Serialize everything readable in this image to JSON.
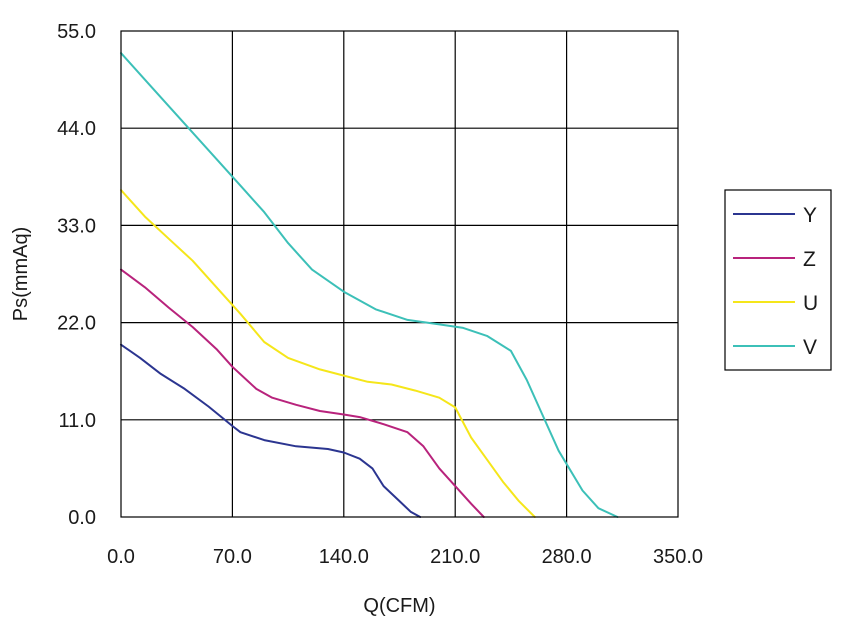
{
  "chart_data": {
    "type": "line",
    "xlabel": "Q(CFM)",
    "ylabel": "Ps(mmAq)",
    "xlim": [
      0,
      350
    ],
    "ylim": [
      0,
      55
    ],
    "x_ticks": [
      "0.0",
      "70.0",
      "140.0",
      "210.0",
      "280.0",
      "350.0"
    ],
    "y_ticks": [
      "0.0",
      "11.0",
      "22.0",
      "33.0",
      "44.0",
      "55.0"
    ],
    "grid": true,
    "legend_position": "right",
    "series": [
      {
        "name": "Y",
        "color": "#2b3590",
        "points": [
          [
            0,
            19.5
          ],
          [
            12,
            18
          ],
          [
            25,
            16.2
          ],
          [
            40,
            14.5
          ],
          [
            55,
            12.5
          ],
          [
            70,
            10.3
          ],
          [
            75,
            9.6
          ],
          [
            90,
            8.7
          ],
          [
            110,
            8.0
          ],
          [
            130,
            7.7
          ],
          [
            140,
            7.3
          ],
          [
            150,
            6.6
          ],
          [
            158,
            5.5
          ],
          [
            165,
            3.5
          ],
          [
            175,
            1.8
          ],
          [
            182,
            0.6
          ],
          [
            188,
            0
          ]
        ]
      },
      {
        "name": "Z",
        "color": "#b8237c",
        "points": [
          [
            0,
            28
          ],
          [
            15,
            26
          ],
          [
            30,
            23.7
          ],
          [
            45,
            21.5
          ],
          [
            60,
            19
          ],
          [
            70,
            17
          ],
          [
            85,
            14.5
          ],
          [
            95,
            13.5
          ],
          [
            110,
            12.7
          ],
          [
            125,
            12.0
          ],
          [
            140,
            11.6
          ],
          [
            150,
            11.3
          ],
          [
            165,
            10.5
          ],
          [
            180,
            9.6
          ],
          [
            190,
            8.0
          ],
          [
            200,
            5.5
          ],
          [
            210,
            3.5
          ],
          [
            220,
            1.5
          ],
          [
            228,
            0
          ]
        ]
      },
      {
        "name": "U",
        "color": "#f5e61a",
        "points": [
          [
            0,
            37
          ],
          [
            15,
            34
          ],
          [
            30,
            31.5
          ],
          [
            45,
            29
          ],
          [
            60,
            26
          ],
          [
            75,
            23
          ],
          [
            90,
            19.8
          ],
          [
            105,
            18
          ],
          [
            125,
            16.7
          ],
          [
            140,
            16
          ],
          [
            155,
            15.3
          ],
          [
            170,
            15
          ],
          [
            185,
            14.3
          ],
          [
            200,
            13.5
          ],
          [
            210,
            12.4
          ],
          [
            220,
            9
          ],
          [
            230,
            6.5
          ],
          [
            240,
            4
          ],
          [
            250,
            1.8
          ],
          [
            260,
            0
          ]
        ]
      },
      {
        "name": "V",
        "color": "#3cc0b8",
        "points": [
          [
            0,
            52.5
          ],
          [
            20,
            48.5
          ],
          [
            40,
            44.5
          ],
          [
            60,
            40.5
          ],
          [
            75,
            37.5
          ],
          [
            90,
            34.5
          ],
          [
            105,
            31
          ],
          [
            120,
            28
          ],
          [
            140,
            25.5
          ],
          [
            160,
            23.5
          ],
          [
            180,
            22.3
          ],
          [
            200,
            21.8
          ],
          [
            215,
            21.4
          ],
          [
            230,
            20.5
          ],
          [
            245,
            18.8
          ],
          [
            255,
            15.5
          ],
          [
            265,
            11.5
          ],
          [
            275,
            7.5
          ],
          [
            290,
            3
          ],
          [
            300,
            1
          ],
          [
            312,
            0
          ]
        ]
      }
    ]
  }
}
